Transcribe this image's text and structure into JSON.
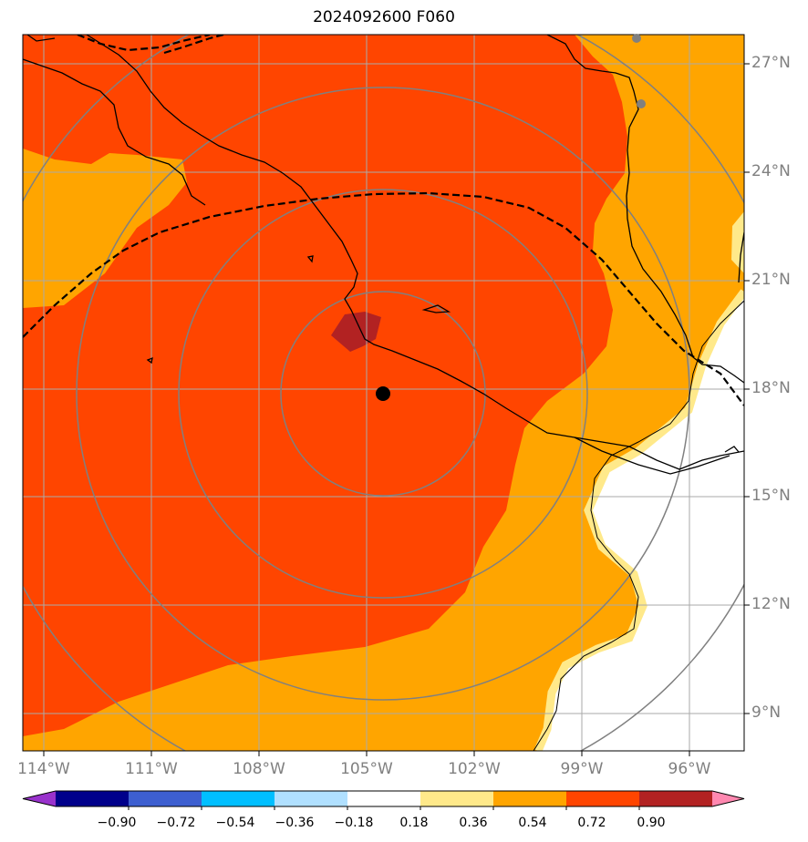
{
  "title": "2024092600 F060",
  "latitude_labels": [
    "27°N",
    "24°N",
    "21°N",
    "18°N",
    "15°N",
    "12°N",
    "9°N"
  ],
  "longitude_labels": [
    "114°W",
    "111°W",
    "108°W",
    "105°W",
    "102°W",
    "99°W",
    "96°W"
  ],
  "colorbar": {
    "tick_labels": [
      "−0.90",
      "−0.72",
      "−0.54",
      "−0.36",
      "−0.18",
      "0.18",
      "0.36",
      "0.54",
      "0.72",
      "0.90"
    ],
    "colors": [
      "#9932cc",
      "#00008b",
      "#3d5fd0",
      "#00bfff",
      "#b0e0ff",
      "#ffffff",
      "#ffe98a",
      "#ffa500",
      "#ff4500",
      "#b22222",
      "#ff88b0"
    ]
  },
  "map": {
    "center_marker": {
      "lon": -104.6,
      "lat": 17.8,
      "color": "#000000"
    },
    "station_markers": [
      {
        "lon": -97.5,
        "lat": 27.7,
        "color": "#808080"
      },
      {
        "lon": -97.4,
        "lat": 25.9,
        "color": "#808080"
      }
    ],
    "fill_colors": {
      "outer": "#ffa500",
      "inner": "#ff4500",
      "peak": "#b22222",
      "light": "#ffe98a",
      "none": "#ffffff"
    }
  }
}
